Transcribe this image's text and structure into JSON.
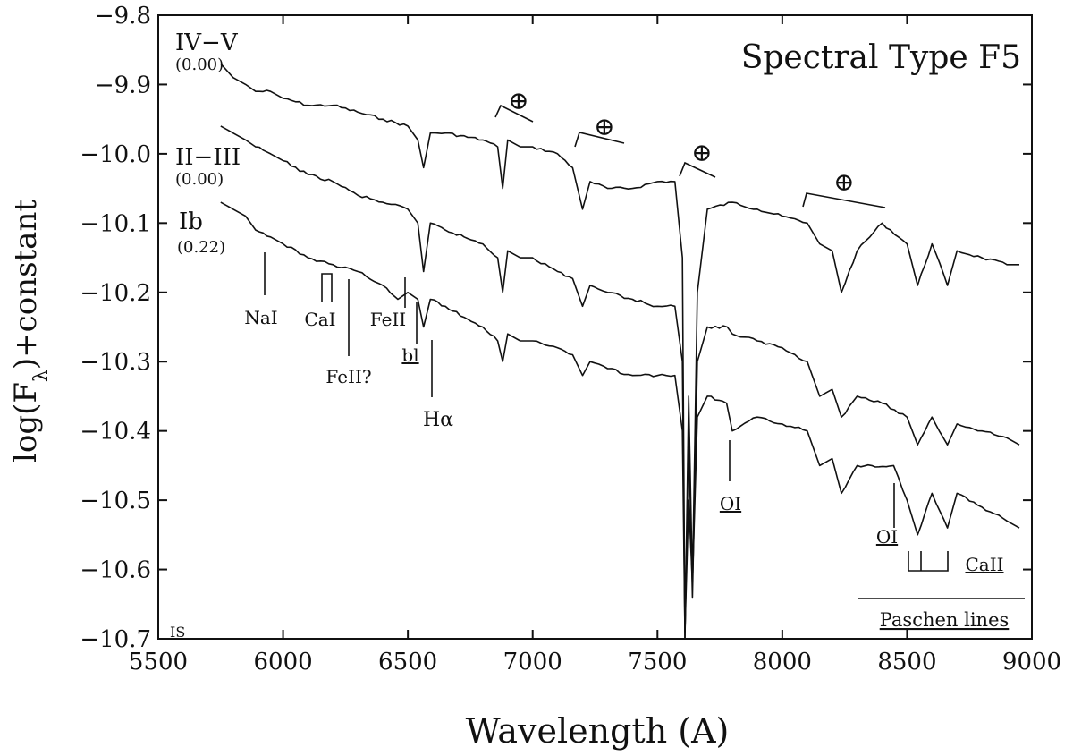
{
  "chart_data": {
    "type": "line",
    "title": "Spectral Type F5",
    "xlabel": "Wavelength (A)",
    "ylabel": "log(Fλ)+constant",
    "xlim": [
      5500,
      9000
    ],
    "ylim": [
      -10.7,
      -9.8
    ],
    "x_ticks": [
      5500,
      6000,
      6500,
      7000,
      7500,
      8000,
      8500,
      9000
    ],
    "y_ticks": [
      -9.8,
      -9.9,
      -10.0,
      -10.1,
      -10.2,
      -10.3,
      -10.4,
      -10.5,
      -10.6,
      -10.7
    ],
    "x_tick_labels": [
      "5500",
      "6000",
      "6500",
      "7000",
      "7500",
      "8000",
      "8500",
      "9000"
    ],
    "y_tick_labels": [
      "−9.8",
      "−9.9",
      "−10.0",
      "−10.1",
      "−10.2",
      "−10.3",
      "−10.4",
      "−10.5",
      "−10.6",
      "−10.7"
    ],
    "grid": false,
    "series": [
      {
        "name": "IV−V",
        "note": "(0.00)",
        "x": [
          5750,
          5800,
          5850,
          5890,
          5950,
          6000,
          6100,
          6200,
          6300,
          6400,
          6500,
          6540,
          6563,
          6590,
          6650,
          6800,
          6860,
          6880,
          6900,
          6950,
          7000,
          7100,
          7160,
          7200,
          7230,
          7300,
          7400,
          7500,
          7570,
          7600,
          7610,
          7625,
          7640,
          7660,
          7700,
          7800,
          7900,
          8000,
          8100,
          8150,
          8200,
          8237,
          8300,
          8400,
          8500,
          8542,
          8600,
          8662,
          8700,
          8800,
          8900,
          8950
        ],
        "y": [
          -9.87,
          -9.89,
          -9.9,
          -9.91,
          -9.91,
          -9.92,
          -9.93,
          -9.93,
          -9.94,
          -9.95,
          -9.96,
          -9.98,
          -10.02,
          -9.97,
          -9.97,
          -9.98,
          -9.99,
          -10.05,
          -9.98,
          -9.99,
          -9.99,
          -10.0,
          -10.02,
          -10.08,
          -10.04,
          -10.05,
          -10.05,
          -10.04,
          -10.04,
          -10.15,
          -10.7,
          -10.35,
          -10.62,
          -10.2,
          -10.08,
          -10.07,
          -10.08,
          -10.09,
          -10.1,
          -10.13,
          -10.14,
          -10.2,
          -10.14,
          -10.1,
          -10.13,
          -10.19,
          -10.13,
          -10.19,
          -10.14,
          -10.15,
          -10.16,
          -10.16
        ]
      },
      {
        "name": "II−III",
        "note": "(0.00)",
        "x": [
          5750,
          5800,
          5850,
          5890,
          5950,
          6000,
          6100,
          6200,
          6300,
          6400,
          6500,
          6540,
          6563,
          6590,
          6650,
          6800,
          6860,
          6880,
          6900,
          6950,
          7000,
          7100,
          7160,
          7200,
          7230,
          7300,
          7400,
          7500,
          7570,
          7600,
          7610,
          7625,
          7640,
          7660,
          7700,
          7780,
          7800,
          7900,
          8000,
          8100,
          8150,
          8200,
          8237,
          8300,
          8400,
          8500,
          8542,
          8600,
          8662,
          8700,
          8800,
          8900,
          8950
        ],
        "y": [
          -9.96,
          -9.97,
          -9.98,
          -9.99,
          -10.0,
          -10.01,
          -10.03,
          -10.04,
          -10.06,
          -10.07,
          -10.08,
          -10.1,
          -10.17,
          -10.1,
          -10.11,
          -10.13,
          -10.15,
          -10.2,
          -10.14,
          -10.15,
          -10.15,
          -10.17,
          -10.18,
          -10.22,
          -10.19,
          -10.2,
          -10.21,
          -10.22,
          -10.22,
          -10.3,
          -10.7,
          -10.4,
          -10.64,
          -10.3,
          -10.25,
          -10.25,
          -10.26,
          -10.27,
          -10.28,
          -10.3,
          -10.35,
          -10.34,
          -10.38,
          -10.35,
          -10.36,
          -10.38,
          -10.42,
          -10.38,
          -10.42,
          -10.39,
          -10.4,
          -10.41,
          -10.42
        ]
      },
      {
        "name": "Ib",
        "note": "(0.22)",
        "x": [
          5750,
          5800,
          5850,
          5890,
          5950,
          6000,
          6100,
          6200,
          6300,
          6400,
          6460,
          6500,
          6540,
          6563,
          6590,
          6650,
          6800,
          6860,
          6880,
          6900,
          6950,
          7000,
          7100,
          7160,
          7200,
          7230,
          7300,
          7400,
          7500,
          7570,
          7600,
          7610,
          7625,
          7640,
          7660,
          7700,
          7777,
          7800,
          7900,
          8000,
          8100,
          8150,
          8200,
          8237,
          8300,
          8446,
          8500,
          8542,
          8600,
          8662,
          8700,
          8800,
          8900,
          8950
        ],
        "y": [
          -10.07,
          -10.08,
          -10.09,
          -10.11,
          -10.12,
          -10.13,
          -10.15,
          -10.16,
          -10.17,
          -10.19,
          -10.21,
          -10.2,
          -10.21,
          -10.25,
          -10.21,
          -10.22,
          -10.25,
          -10.27,
          -10.3,
          -10.26,
          -10.27,
          -10.27,
          -10.28,
          -10.29,
          -10.32,
          -10.3,
          -10.31,
          -10.32,
          -10.32,
          -10.32,
          -10.4,
          -10.69,
          -10.5,
          -10.62,
          -10.38,
          -10.35,
          -10.36,
          -10.4,
          -10.38,
          -10.39,
          -10.4,
          -10.45,
          -10.44,
          -10.49,
          -10.45,
          -10.45,
          -10.5,
          -10.55,
          -10.49,
          -10.54,
          -10.49,
          -10.51,
          -10.53,
          -10.54
        ]
      }
    ],
    "annotations": [
      {
        "text": "NaI",
        "x": 5893
      },
      {
        "text": "CaI",
        "x": 6140
      },
      {
        "text": "FeII?",
        "x": 6240
      },
      {
        "text": "FeII",
        "x": 6456
      },
      {
        "text": "bl",
        "x": 6497
      },
      {
        "text": "Hα",
        "x": 6563
      },
      {
        "text": "OI",
        "x": 7774
      },
      {
        "text": "OI",
        "x": 8446
      },
      {
        "text": "CaII",
        "x": 8600
      },
      {
        "text": "Paschen lines",
        "x": 8700
      },
      {
        "text": "⊕",
        "x": 6900
      },
      {
        "text": "⊕",
        "x": 7260
      },
      {
        "text": "⊕",
        "x": 7600
      },
      {
        "text": "⊕",
        "x": 8250
      },
      {
        "text": "IS",
        "x": 5500
      }
    ]
  }
}
